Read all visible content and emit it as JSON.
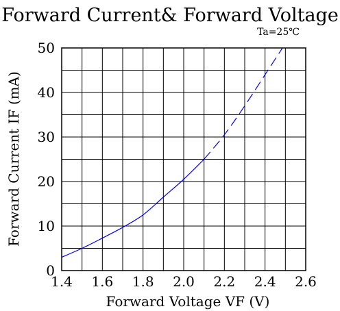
{
  "chart_data": {
    "type": "line",
    "title": "Forward Current& Forward Voltage",
    "condition": "Ta=25℃",
    "xlabel": "Forward Voltage VF (V)",
    "ylabel": "Forward Current IF (mA)",
    "xlim": [
      1.4,
      2.6
    ],
    "ylim": [
      0,
      50
    ],
    "x_ticks": [
      "1.4",
      "1.6",
      "1.8",
      "2.0",
      "2.2",
      "2.4",
      "2.6"
    ],
    "y_ticks": [
      "0",
      "10",
      "20",
      "30",
      "40",
      "50"
    ],
    "grid": true,
    "series": [
      {
        "line_style": "solid",
        "color": "#0000ff",
        "x": [
          1.4,
          1.5,
          1.6,
          1.7,
          1.8,
          1.9,
          2.0,
          2.1
        ],
        "y": [
          3.0,
          5.0,
          7.3,
          9.7,
          12.5,
          16.5,
          20.5,
          25.0
        ]
      },
      {
        "line_style": "dashed",
        "color": "#0000ff",
        "x": [
          2.1,
          2.2,
          2.3,
          2.4,
          2.5
        ],
        "y": [
          25.0,
          30.5,
          37.0,
          44.0,
          51.0
        ]
      }
    ]
  }
}
